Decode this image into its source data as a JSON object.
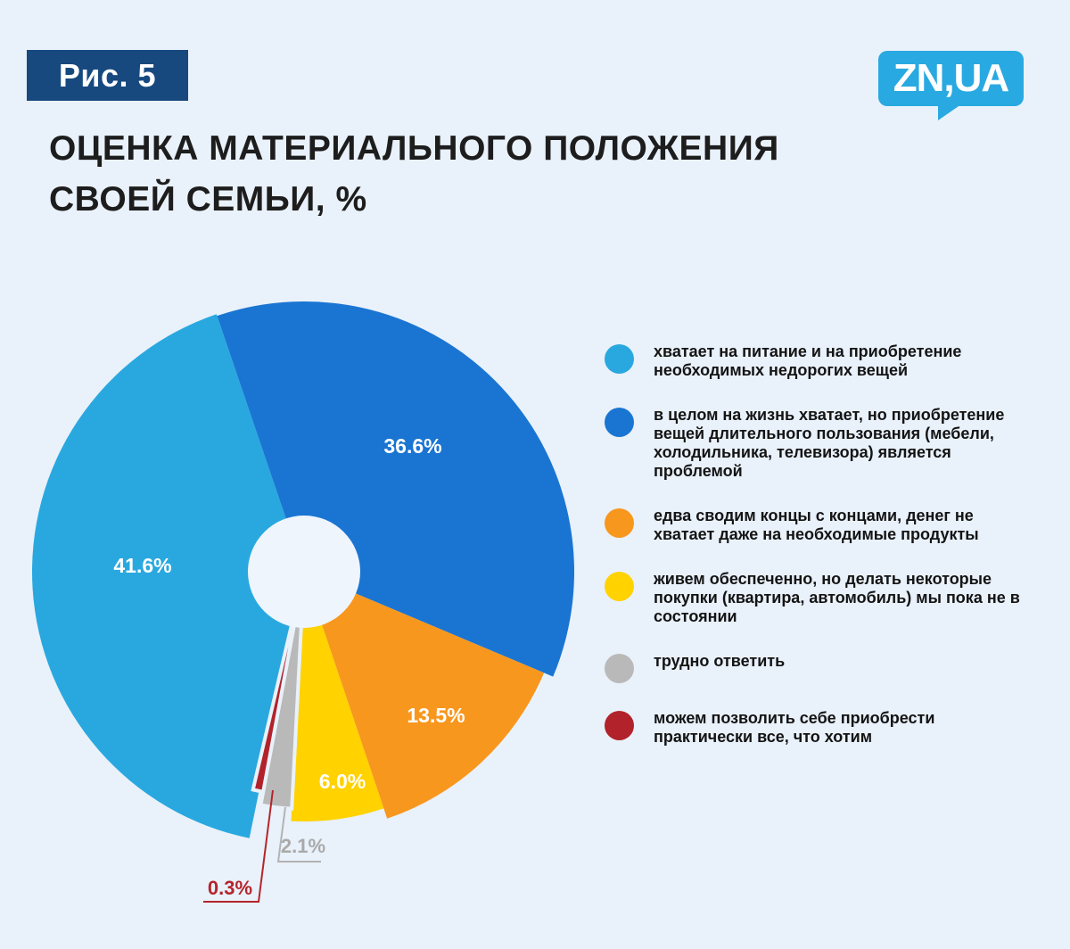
{
  "header": {
    "figure_badge": "Рис. 5",
    "title_line1": "ОЦЕНКА МАТЕРИАЛЬНОГО ПОЛОЖЕНИЯ",
    "title_line2": "СВОЕЙ СЕМЬИ, %",
    "logo_text": "ZN,UA"
  },
  "colors": {
    "background": "#e9f1fa",
    "badge_bg": "#17497f",
    "logo_bg": "#29a9e1",
    "title_text": "#1d1d1d",
    "donut_hole": "#eff5fd",
    "callout_gray_text": "#a9a9a9",
    "callout_gray_line": "#b3b3b3",
    "callout_red_text": "#b5242b",
    "callout_red_line": "#b5242b",
    "slice_label_text": "#ffffff"
  },
  "chart_data": {
    "type": "pie",
    "donut": true,
    "title": "Оценка материального положения своей семьи, %",
    "units": "%",
    "legend_position": "right",
    "start_angle_deg_cw_from_top": 191.6,
    "slices": [
      {
        "label": "хватает на питание и на приобретение необходимых недорогих вещей",
        "value": 41.6,
        "value_label": "41.6%",
        "color": "#29a8e0"
      },
      {
        "label": "в целом на жизнь хватает, но приобретение вещей длительного пользования (мебели, холодильника, телевизора) является проблемой",
        "value": 36.6,
        "value_label": "36.6%",
        "color": "#1a75d2"
      },
      {
        "label": "едва сводим концы с концами, денег не хватает даже на необходимые продукты",
        "value": 13.5,
        "value_label": "13.5%",
        "color": "#f8971d"
      },
      {
        "label": "живем обеспеченно, но делать некоторые покупки (квартира, автомобиль) мы пока не в состоянии",
        "value": 6.0,
        "value_label": "6.0%",
        "color": "#ffd200"
      },
      {
        "label": "трудно ответить",
        "value": 2.1,
        "value_label": "2.1%",
        "color": "#b9b9b9"
      },
      {
        "label": "можем позволить себе приобрести практически все, что хотим",
        "value": 0.3,
        "value_label": "0.3%",
        "color": "#b1222a"
      }
    ]
  }
}
